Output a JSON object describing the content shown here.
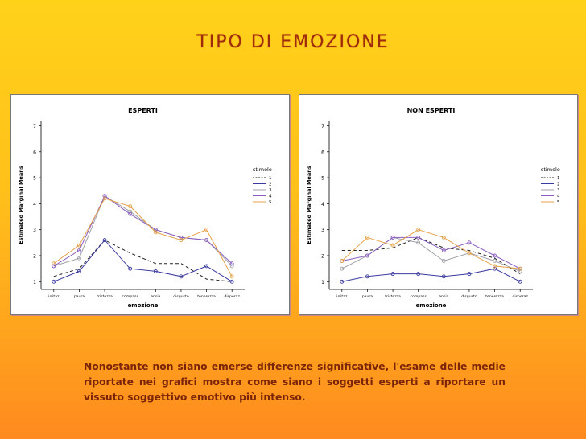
{
  "slide": {
    "title": "TIPO DI EMOZIONE",
    "caption": "Nonostante non siano emerse differenze significative, l'esame delle medie riportate nei grafici mostra come siano i soggetti esperti a riportare un vissuto soggettivo emotivo più intenso."
  },
  "series_styles": [
    {
      "color": "#222222",
      "dash": "4,3"
    },
    {
      "color": "#3a3aa0",
      "dash": ""
    },
    {
      "color": "#a0a0a8",
      "dash": ""
    },
    {
      "color": "#8a5fc0",
      "dash": ""
    },
    {
      "color": "#e6a24a",
      "dash": ""
    }
  ],
  "chart_data": [
    {
      "type": "line",
      "title": "ESPERTI",
      "xlabel": "emozione",
      "ylabel": "Estimated Marginal Means",
      "legend_title": "stimolo",
      "legend_placement": "right",
      "categories": [
        "irritaz",
        "paura",
        "tristezza",
        "compass",
        "ansia",
        "disgusto",
        "tenerezza",
        "disperaz"
      ],
      "ylim": [
        0.7,
        7.2
      ],
      "yticks": [
        1,
        2,
        3,
        4,
        5,
        6,
        7
      ],
      "series": [
        {
          "name": "1",
          "values": [
            1.2,
            1.5,
            2.6,
            2.1,
            1.7,
            1.7,
            1.1,
            1.0
          ]
        },
        {
          "name": "2",
          "values": [
            1.0,
            1.4,
            2.6,
            1.5,
            1.4,
            1.2,
            1.6,
            1.0
          ]
        },
        {
          "name": "3",
          "values": [
            1.6,
            1.9,
            4.3,
            3.7,
            3.0,
            2.7,
            2.6,
            1.6
          ]
        },
        {
          "name": "4",
          "values": [
            1.6,
            2.2,
            4.3,
            3.6,
            3.0,
            2.7,
            2.6,
            1.7
          ]
        },
        {
          "name": "5",
          "values": [
            1.7,
            2.4,
            4.2,
            3.9,
            2.9,
            2.6,
            3.0,
            1.2
          ]
        }
      ]
    },
    {
      "type": "line",
      "title": "NON ESPERTI",
      "xlabel": "emozione",
      "ylabel": "Estimated Marginal Means",
      "legend_title": "stimolo",
      "legend_placement": "right",
      "categories": [
        "irritaz",
        "paura",
        "tristezza",
        "compass",
        "ansia",
        "disgusto",
        "tenerezza",
        "disperaz"
      ],
      "ylim": [
        0.7,
        7.2
      ],
      "yticks": [
        1,
        2,
        3,
        4,
        5,
        6,
        7
      ],
      "series": [
        {
          "name": "1",
          "values": [
            2.2,
            2.2,
            2.3,
            2.7,
            2.3,
            2.2,
            1.9,
            1.3
          ]
        },
        {
          "name": "2",
          "values": [
            1.0,
            1.2,
            1.3,
            1.3,
            1.2,
            1.3,
            1.5,
            1.0
          ]
        },
        {
          "name": "3",
          "values": [
            1.5,
            2.0,
            2.7,
            2.5,
            1.8,
            2.1,
            1.8,
            1.4
          ]
        },
        {
          "name": "4",
          "values": [
            1.8,
            2.0,
            2.7,
            2.7,
            2.2,
            2.5,
            2.0,
            1.5
          ]
        },
        {
          "name": "5",
          "values": [
            1.8,
            2.7,
            2.4,
            3.0,
            2.7,
            2.1,
            1.6,
            1.5
          ]
        }
      ]
    }
  ]
}
